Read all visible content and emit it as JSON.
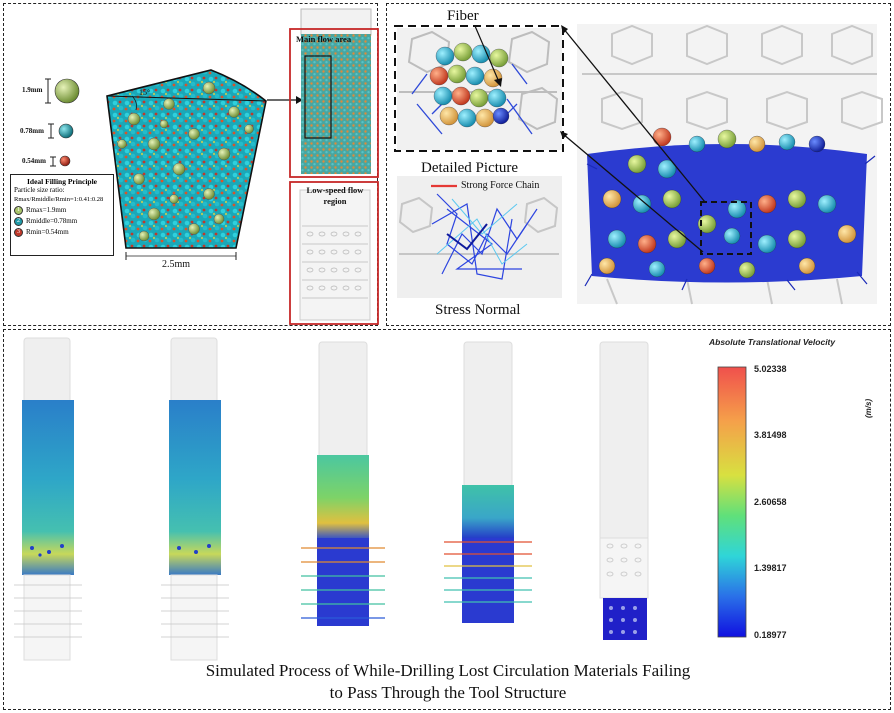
{
  "top_left": {
    "particle_sizes": [
      "1.9mm",
      "0.78mm",
      "0.54mm"
    ],
    "angle_label": "15°",
    "width_label": "2.5mm",
    "legend": {
      "title": "Ideal Filling Principle",
      "ratio_label": "Particle size ratio:",
      "ratio_value": "Rmax/Rmiddle/Rmin=1:0.41:0.28",
      "items": [
        {
          "num": "1",
          "text": "Rmax=1.9mm",
          "color": "#a9c46b"
        },
        {
          "num": "2",
          "text": "Rmiddle=0.78mm",
          "color": "#1f9aa8"
        },
        {
          "num": "3",
          "text": "Rmin=0.54mm",
          "color": "#c0392b"
        }
      ]
    },
    "main_flow_label": "Main flow area",
    "low_speed_label": "Low-speed flow region"
  },
  "top_right": {
    "fiber_label": "Fiber",
    "detailed_label": "Detailed Picture",
    "strong_force_label": "Strong Force Chain",
    "stress_label": "Stress Normal"
  },
  "bottom": {
    "caption_line1": "Simulated Process of While-Drilling Lost Circulation Materials Failing",
    "caption_line2": "to Pass Through the Tool Structure",
    "colorbar": {
      "title": "Absolute Translational Velocity",
      "unit": "(m/s)",
      "ticks": [
        "5.02338",
        "3.81498",
        "2.60658",
        "1.39817",
        "0.18977"
      ]
    }
  },
  "colors": {
    "particle_green": "#a9c46b",
    "particle_cyan": "#1fb5c4",
    "particle_red": "#c0392b",
    "frame_red": "#c62828"
  }
}
